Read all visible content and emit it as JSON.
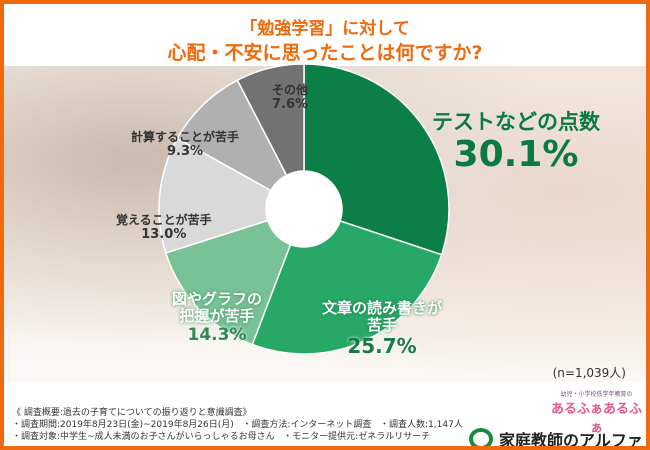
{
  "title_line1": "「勉強学習」に対して",
  "title_line2": "心配・不安に思ったことは何ですか?",
  "chart_data": {
    "type": "pie",
    "donut": true,
    "start": "top, clockwise",
    "categories": [
      "テストなどの点数",
      "文章の読み書きが苦手",
      "図やグラフの把握が苦手",
      "覚えることが苦手",
      "計算することが苦手",
      "その他"
    ],
    "labels": [
      {
        "name": "テストなどの点数",
        "pct": "30.1%"
      },
      {
        "name": "文章の読み書きが苦手",
        "line1": "文章の読み書きが",
        "line2": "苦手",
        "pct": "25.7%"
      },
      {
        "name": "図やグラフの把握が苦手",
        "line1": "図やグラフの",
        "line2": "把握が苦手",
        "pct": "14.3%"
      },
      {
        "name": "覚えることが苦手",
        "pct": "13.0%"
      },
      {
        "name": "計算することが苦手",
        "pct": "9.3%"
      },
      {
        "name": "その他",
        "pct": "7.6%"
      }
    ],
    "values": [
      30.1,
      25.7,
      14.3,
      13.0,
      9.3,
      7.6
    ],
    "colors": [
      "#0b7f45",
      "#27a866",
      "#79c295",
      "#d9d9d9",
      "#b0b0b0",
      "#727272"
    ]
  },
  "sample": "(n=1,039人)",
  "survey": {
    "heading": "《 調査概要:過去の子育てについての振り返りと意識調査》",
    "period": "・調査期間:2019年8月23日(金)~2019年8月26日(月)",
    "method": "・調査方法:インターネット調査",
    "count": "・調査人数:1,147人",
    "target": "・調査対象:中学生~成人未満のお子さんがいらっしゃるお母さん",
    "provider": "・モニター提供元:ゼネラルリサーチ"
  },
  "logos": {
    "small": "幼児・小学校低学年教育の",
    "brand1": "あるふぁあるふぁ",
    "brand2": "家庭教師のアルファ"
  }
}
